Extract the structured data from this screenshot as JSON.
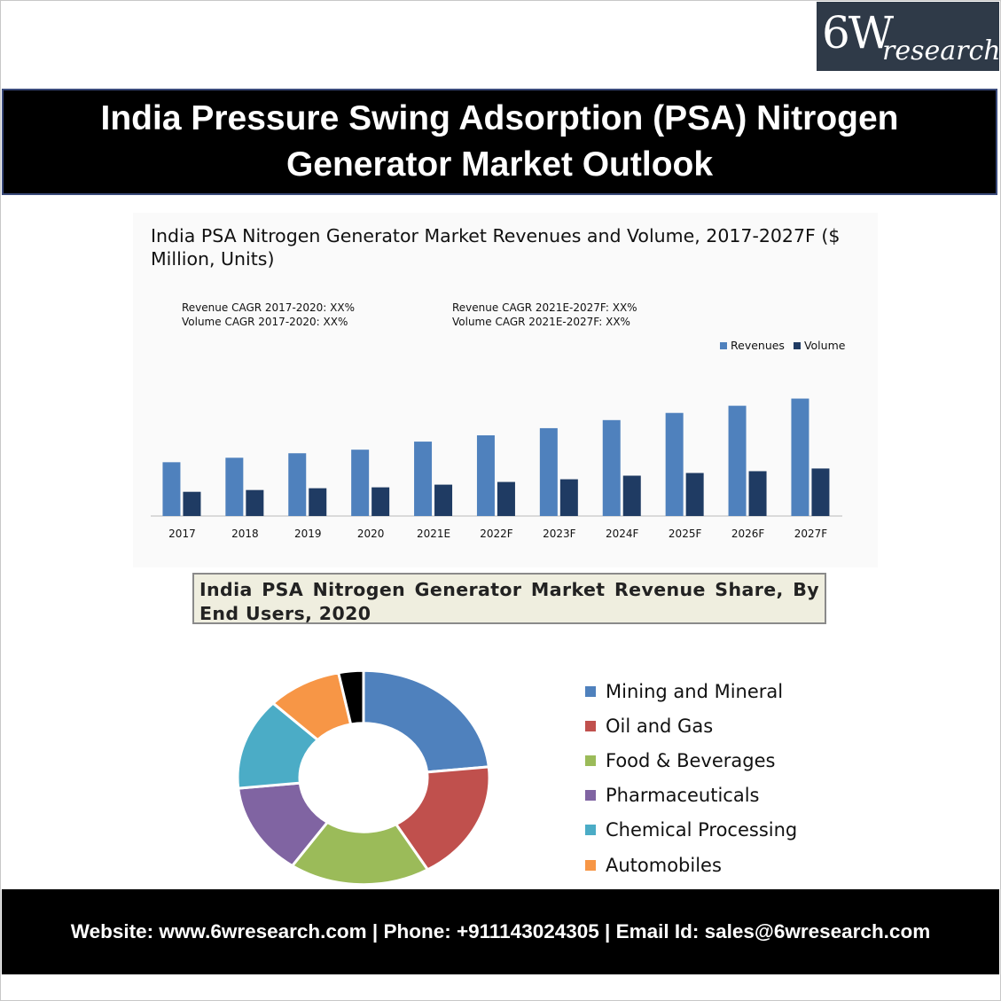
{
  "logo": {
    "primary": "6W",
    "secondary": "research"
  },
  "banner": {
    "title": "India Pressure Swing Adsorption (PSA) Nitrogen Generator Market Outlook"
  },
  "colors": {
    "revenues": "#4f81bd",
    "volume": "#1f3b63",
    "mining": "#4f81bd",
    "oil_gas": "#c0504d",
    "food": "#9bbb59",
    "pharma": "#8064a2",
    "chemical": "#4bacc6",
    "auto": "#f79646",
    "other": "#000000"
  },
  "chart_data": [
    {
      "type": "bar",
      "title": "India PSA Nitrogen Generator Market Revenues and Volume, 2017-2027F ($ Million, Units)",
      "annotations": {
        "left": [
          "Revenue CAGR 2017-2020: XX%",
          "Volume CAGR 2017-2020: XX%"
        ],
        "right": [
          "Revenue CAGR 2021E-2027F: XX%",
          "Volume CAGR 2021E-2027F: XX%"
        ]
      },
      "categories": [
        "2017",
        "2018",
        "2019",
        "2020",
        "2021E",
        "2022F",
        "2023F",
        "2024F",
        "2025F",
        "2026F",
        "2027F"
      ],
      "series": [
        {
          "name": "Revenues",
          "values": [
            60,
            65,
            70,
            74,
            83,
            90,
            98,
            107,
            115,
            123,
            131
          ]
        },
        {
          "name": "Volume",
          "values": [
            27,
            29,
            31,
            32,
            35,
            38,
            41,
            45,
            48,
            50,
            53
          ]
        }
      ],
      "ylim": [
        0,
        180
      ],
      "grid": false,
      "legend": "top-right"
    },
    {
      "type": "pie",
      "title": "India PSA Nitrogen Generator Market Revenue Share, By End Users, 2020",
      "labels": [
        "Mining and Mineral",
        "Oil and Gas",
        "Food & Beverages",
        "Pharmaceuticals",
        "Chemical Processing",
        "Automobiles",
        ""
      ],
      "values": [
        22,
        17,
        17,
        13,
        13,
        9,
        3
      ],
      "legend": "right"
    }
  ],
  "footer": {
    "text": "Website: www.6wresearch.com | Phone: +911143024305 | Email Id: sales@6wresearch.com"
  }
}
